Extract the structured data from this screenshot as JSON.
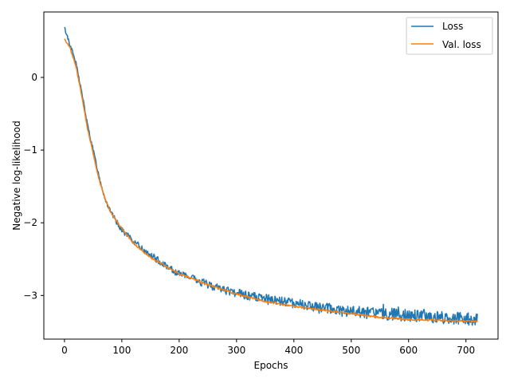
{
  "chart_data": {
    "type": "line",
    "title": "",
    "xlabel": "Epochs",
    "ylabel": "Negative log-likelihood",
    "xlim": [
      -36,
      756
    ],
    "ylim": [
      -3.6,
      0.9
    ],
    "xticks": [
      0,
      100,
      200,
      300,
      400,
      500,
      600,
      700
    ],
    "yticks": [
      0,
      -1,
      -2,
      -3
    ],
    "ytick_labels": [
      "0",
      "−1",
      "−2",
      "−3"
    ],
    "grid": false,
    "legend_position": "top-right",
    "series": [
      {
        "name": "Loss",
        "color": "#1f77b4",
        "noise": "high",
        "anchors": [
          [
            0,
            0.68
          ],
          [
            10,
            0.45
          ],
          [
            20,
            0.2
          ],
          [
            30,
            -0.2
          ],
          [
            40,
            -0.65
          ],
          [
            50,
            -1.0
          ],
          [
            60,
            -1.35
          ],
          [
            70,
            -1.65
          ],
          [
            80,
            -1.85
          ],
          [
            100,
            -2.1
          ],
          [
            120,
            -2.25
          ],
          [
            150,
            -2.45
          ],
          [
            200,
            -2.7
          ],
          [
            250,
            -2.85
          ],
          [
            300,
            -2.97
          ],
          [
            350,
            -3.05
          ],
          [
            400,
            -3.1
          ],
          [
            450,
            -3.18
          ],
          [
            500,
            -3.22
          ],
          [
            550,
            -3.25
          ],
          [
            600,
            -3.27
          ],
          [
            650,
            -3.3
          ],
          [
            720,
            -3.33
          ]
        ]
      },
      {
        "name": "Val. loss",
        "color": "#ff7f0e",
        "noise": "low",
        "anchors": [
          [
            0,
            0.53
          ],
          [
            10,
            0.4
          ],
          [
            20,
            0.15
          ],
          [
            30,
            -0.25
          ],
          [
            40,
            -0.7
          ],
          [
            50,
            -1.05
          ],
          [
            60,
            -1.4
          ],
          [
            70,
            -1.65
          ],
          [
            80,
            -1.85
          ],
          [
            100,
            -2.08
          ],
          [
            120,
            -2.28
          ],
          [
            150,
            -2.48
          ],
          [
            200,
            -2.7
          ],
          [
            250,
            -2.85
          ],
          [
            300,
            -2.98
          ],
          [
            350,
            -3.08
          ],
          [
            400,
            -3.15
          ],
          [
            450,
            -3.2
          ],
          [
            500,
            -3.25
          ],
          [
            550,
            -3.3
          ],
          [
            600,
            -3.33
          ],
          [
            650,
            -3.34
          ],
          [
            720,
            -3.36
          ]
        ]
      }
    ]
  }
}
